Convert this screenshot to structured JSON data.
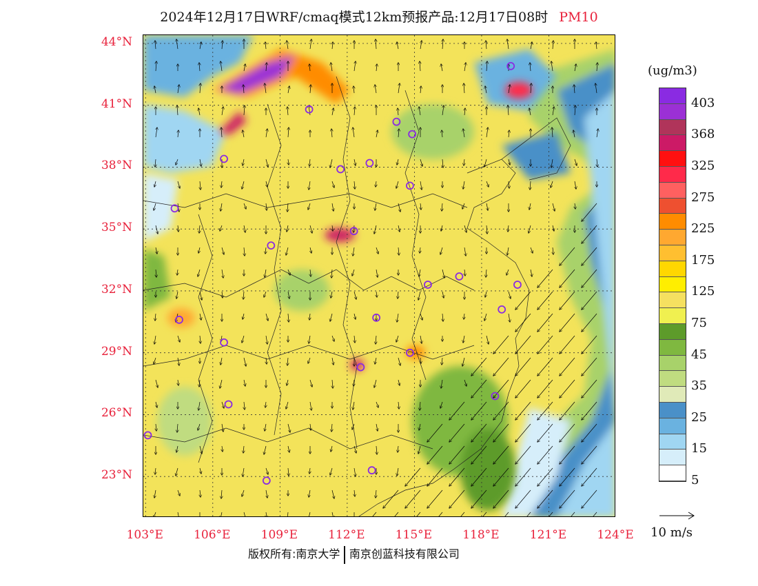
{
  "title": {
    "main": "2024年12月17日WRF/cmaq模式12km预报产品:12月17日08时",
    "variable": "PM10"
  },
  "colors": {
    "title_variable": "#e8203a",
    "axis_labels": "#e8203a",
    "background_fill": "#f3e35a"
  },
  "map": {
    "lat_labels": [
      "44°N",
      "41°N",
      "38°N",
      "35°N",
      "32°N",
      "29°N",
      "26°N",
      "23°N"
    ],
    "lon_labels": [
      "103°E",
      "106°E",
      "109°E",
      "112°E",
      "115°E",
      "118°E",
      "121°E",
      "124°E"
    ],
    "lat_range": [
      21,
      44.4
    ],
    "lon_range": [
      102.9,
      124
    ],
    "station_markers": [
      {
        "lon": 119.3,
        "lat": 42.9
      },
      {
        "lon": 110.3,
        "lat": 40.8
      },
      {
        "lon": 114.2,
        "lat": 40.2
      },
      {
        "lon": 114.9,
        "lat": 39.6
      },
      {
        "lon": 106.5,
        "lat": 38.4
      },
      {
        "lon": 111.7,
        "lat": 37.9
      },
      {
        "lon": 113.0,
        "lat": 38.2
      },
      {
        "lon": 114.8,
        "lat": 37.1
      },
      {
        "lon": 104.3,
        "lat": 36.0
      },
      {
        "lon": 112.3,
        "lat": 34.9
      },
      {
        "lon": 108.6,
        "lat": 34.2
      },
      {
        "lon": 117.0,
        "lat": 32.7
      },
      {
        "lon": 115.6,
        "lat": 32.3
      },
      {
        "lon": 119.6,
        "lat": 32.3
      },
      {
        "lon": 118.9,
        "lat": 31.1
      },
      {
        "lon": 104.5,
        "lat": 30.6
      },
      {
        "lon": 113.3,
        "lat": 30.7
      },
      {
        "lon": 106.5,
        "lat": 29.5
      },
      {
        "lon": 114.8,
        "lat": 29.0
      },
      {
        "lon": 112.6,
        "lat": 28.3
      },
      {
        "lon": 106.7,
        "lat": 26.5
      },
      {
        "lon": 118.6,
        "lat": 26.9
      },
      {
        "lon": 103.1,
        "lat": 25.0
      },
      {
        "lon": 108.4,
        "lat": 22.8
      },
      {
        "lon": 113.1,
        "lat": 23.3
      }
    ]
  },
  "legend": {
    "unit": "(ug/m3)",
    "colors": [
      "#8a2be2",
      "#9b30d5",
      "#b0345a",
      "#cc1a66",
      "#ff1010",
      "#ff2a4a",
      "#ff6060",
      "#ee5030",
      "#ff8c00",
      "#ffa830",
      "#ffbf30",
      "#ffd700",
      "#ffee00",
      "#f5e060",
      "#f0f050",
      "#5d9b2a",
      "#7fb840",
      "#a8d26a",
      "#c0dc80",
      "#e0eab8",
      "#4a90c8",
      "#6ab2e0",
      "#a0d6f2",
      "#d6eefa",
      "#ffffff"
    ],
    "labels": [
      "403",
      "368",
      "325",
      "275",
      "225",
      "175",
      "125",
      "75",
      "45",
      "35",
      "25",
      "15",
      "5"
    ],
    "reference_vector": "10 m/s"
  },
  "copyright": {
    "owner1": "版权所有:南京大学",
    "owner2": "南京创蓝科技有限公司"
  }
}
